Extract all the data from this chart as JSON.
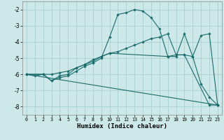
{
  "xlabel": "Humidex (Indice chaleur)",
  "bg_color": "#cde8e8",
  "grid_color": "#aacece",
  "line_color": "#1a6b6b",
  "xlim": [
    -0.5,
    23.5
  ],
  "ylim": [
    -8.5,
    -1.5
  ],
  "yticks": [
    -8,
    -7,
    -6,
    -5,
    -4,
    -3,
    -2
  ],
  "xticks": [
    0,
    1,
    2,
    3,
    4,
    5,
    6,
    7,
    8,
    9,
    10,
    11,
    12,
    13,
    14,
    15,
    16,
    17,
    18,
    19,
    20,
    21,
    22,
    23
  ],
  "line_configs": [
    {
      "x": [
        0,
        1,
        2,
        3,
        4,
        5,
        6,
        7,
        8,
        9,
        10,
        11,
        12,
        13,
        14,
        15,
        16,
        17,
        18,
        19,
        20,
        21,
        22,
        23
      ],
      "y": [
        -6.0,
        -6.1,
        -6.0,
        -6.4,
        -6.2,
        -6.1,
        -5.8,
        -5.5,
        -5.3,
        -5.0,
        -3.7,
        -2.3,
        -2.2,
        -2.0,
        -2.1,
        -2.5,
        -3.2,
        -4.9,
        -4.9,
        -3.5,
        -4.9,
        -6.6,
        -7.4,
        -7.9
      ]
    },
    {
      "x": [
        0,
        2,
        3,
        4,
        5,
        6,
        7,
        8,
        9,
        10,
        11,
        12,
        13,
        14,
        15,
        16,
        17,
        18,
        19,
        20,
        21,
        22,
        23
      ],
      "y": [
        -6.0,
        -6.0,
        -6.0,
        -5.9,
        -5.8,
        -5.6,
        -5.4,
        -5.2,
        -4.9,
        -4.7,
        -4.6,
        -4.4,
        -4.2,
        -4.0,
        -3.8,
        -3.7,
        -3.5,
        -4.8,
        -4.8,
        -4.9,
        -3.6,
        -3.5,
        -7.9
      ]
    },
    {
      "x": [
        0,
        2,
        3,
        4,
        5,
        6,
        7,
        8,
        9,
        10,
        17,
        18,
        19,
        22,
        23
      ],
      "y": [
        -6.0,
        -6.0,
        -6.4,
        -6.1,
        -6.0,
        -5.6,
        -5.4,
        -5.1,
        -4.9,
        -4.7,
        -4.9,
        -4.8,
        -4.8,
        -7.9,
        -7.9
      ]
    },
    {
      "x": [
        0,
        23
      ],
      "y": [
        -6.0,
        -7.9
      ]
    }
  ]
}
